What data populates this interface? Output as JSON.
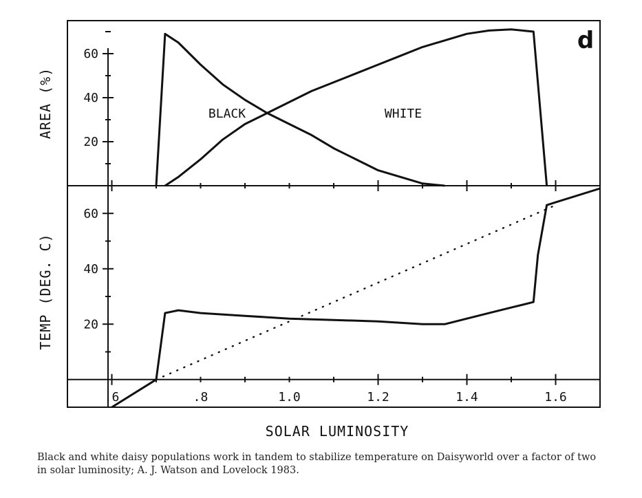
{
  "caption": "Black and white daisy populations work in tandem to stabilize temperature on Daisyworld over a factor of two in solar luminosity; A. J. Watson and Lovelock 1983.",
  "panel_label": "d",
  "chart_data": [
    {
      "type": "line",
      "panel": "top",
      "ylabel": "AREA (%)",
      "xlim": [
        0.5,
        1.7
      ],
      "ylim": [
        0,
        75
      ],
      "yticks": [
        20,
        40,
        60
      ],
      "ytick_labels": [
        "20",
        "40",
        "60"
      ],
      "series": [
        {
          "name": "BLACK",
          "style": "solid",
          "x": [
            0.7,
            0.72,
            0.75,
            0.8,
            0.85,
            0.9,
            0.95,
            1.0,
            1.05,
            1.1,
            1.15,
            1.2,
            1.25,
            1.3,
            1.35
          ],
          "y": [
            0,
            69,
            65,
            55,
            46,
            39,
            33,
            28,
            23,
            17,
            12,
            7,
            4,
            1,
            0
          ]
        },
        {
          "name": "WHITE",
          "style": "solid",
          "x": [
            0.72,
            0.75,
            0.8,
            0.85,
            0.9,
            0.95,
            1.0,
            1.05,
            1.1,
            1.15,
            1.2,
            1.25,
            1.3,
            1.35,
            1.4,
            1.45,
            1.5,
            1.55,
            1.58
          ],
          "y": [
            0,
            4,
            12,
            21,
            28,
            33,
            38,
            43,
            47,
            51,
            55,
            59,
            63,
            66,
            69,
            70.5,
            71,
            70,
            0
          ]
        }
      ]
    },
    {
      "type": "line",
      "panel": "bottom",
      "ylabel": "TEMP (DEG. C)",
      "xlabel": "SOLAR LUMINOSITY",
      "xlim": [
        0.5,
        1.7
      ],
      "ylim": [
        -10,
        70
      ],
      "xticks": [
        0.6,
        0.8,
        1.0,
        1.2,
        1.4,
        1.6
      ],
      "xtick_labels": [
        ".6",
        ".8",
        "1.0",
        "1.2",
        "1.4",
        "1.6"
      ],
      "yticks": [
        20,
        40,
        60
      ],
      "ytick_labels": [
        "20",
        "40",
        "60"
      ],
      "series": [
        {
          "style": "solid",
          "x": [
            0.6,
            0.7,
            0.72,
            0.75,
            0.8,
            0.9,
            1.0,
            1.1,
            1.2,
            1.3,
            1.35,
            1.4,
            1.45,
            1.5,
            1.55,
            1.56,
            1.58,
            1.6,
            1.7
          ],
          "y": [
            -10,
            0,
            24,
            25,
            24,
            23,
            22,
            21.5,
            21,
            20,
            20,
            22,
            24,
            26,
            28,
            45,
            63,
            64,
            69
          ]
        },
        {
          "style": "dotted",
          "x": [
            0.7,
            1.6
          ],
          "y": [
            0,
            63
          ]
        }
      ]
    }
  ]
}
